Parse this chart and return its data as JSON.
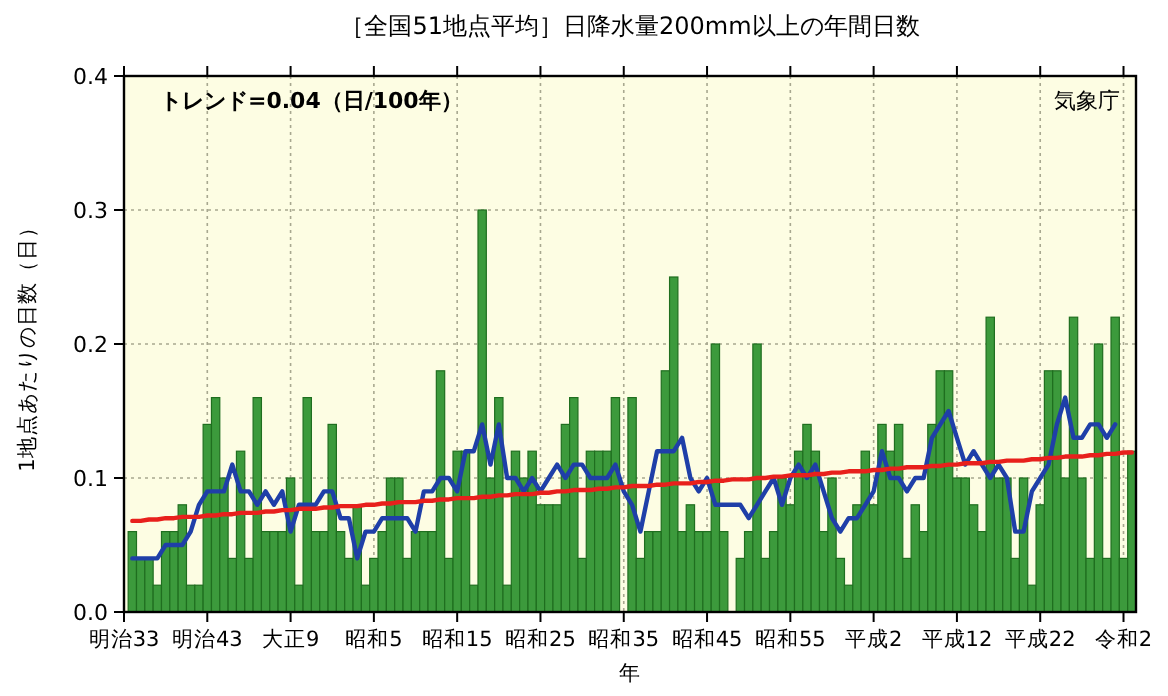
{
  "chart_data": {
    "type": "bar",
    "title": "［全国51地点平均］日降水量200mm以上の年間日数",
    "xlabel": "年",
    "ylabel": "1地点あたりの日数（日）",
    "annotations": [
      "トレンド=0.04（日/100年）",
      "気象庁"
    ],
    "ylim": [
      0,
      0.4
    ],
    "categories": [
      "明治33",
      null,
      null,
      null,
      null,
      null,
      null,
      null,
      null,
      null,
      "明治43",
      null,
      null,
      null,
      null,
      null,
      null,
      null,
      null,
      null,
      "大正9",
      null,
      null,
      null,
      null,
      null,
      null,
      null,
      null,
      null,
      "昭和5",
      null,
      null,
      null,
      null,
      null,
      null,
      null,
      null,
      null,
      "昭和15",
      null,
      null,
      null,
      null,
      null,
      null,
      null,
      null,
      null,
      "昭和25",
      null,
      null,
      null,
      null,
      null,
      null,
      null,
      null,
      null,
      "昭和35",
      null,
      null,
      null,
      null,
      null,
      null,
      null,
      null,
      null,
      "昭和45",
      null,
      null,
      null,
      null,
      null,
      null,
      null,
      null,
      null,
      "昭和55",
      null,
      null,
      null,
      null,
      null,
      null,
      null,
      null,
      null,
      "平成2",
      null,
      null,
      null,
      null,
      null,
      null,
      null,
      null,
      null,
      "平成12",
      null,
      null,
      null,
      null,
      null,
      null,
      null,
      null,
      null,
      "平成22",
      null,
      null,
      null,
      null,
      null,
      null,
      null,
      null,
      null,
      "令和2",
      null
    ],
    "yticks": [
      {
        "value": 0,
        "label": "0.0"
      },
      {
        "value": 0.1,
        "label": "0.1"
      },
      {
        "value": 0.2,
        "label": "0.2"
      },
      {
        "value": 0.3,
        "label": "0.3"
      },
      {
        "value": 0.4,
        "label": "0.4"
      }
    ],
    "grid": true,
    "series": [
      {
        "color": "#3c9a3c",
        "values": [
          null,
          0.06,
          0.04,
          0.04,
          0.02,
          0.06,
          0.06,
          0.08,
          0.02,
          0.02,
          0.14,
          0.16,
          0.1,
          0.04,
          0.12,
          0.04,
          0.16,
          0.06,
          0.06,
          0.06,
          0.1,
          0.02,
          0.16,
          0.06,
          0.06,
          0.14,
          0.06,
          0.04,
          0.08,
          0.02,
          0.04,
          0.06,
          0.1,
          0.1,
          0.04,
          0.06,
          0.06,
          0.06,
          0.18,
          0.04,
          0.12,
          0.12,
          0.02,
          0.3,
          0.1,
          0.16,
          0.02,
          0.12,
          0.1,
          0.12,
          0.08,
          0.08,
          0.08,
          0.14,
          0.16,
          0.04,
          0.12,
          0.12,
          0.12,
          0.16,
          0,
          0.16,
          0.04,
          0.06,
          0.06,
          0.18,
          0.25,
          0.06,
          0.08,
          0.06,
          0.06,
          0.2,
          0.06,
          0,
          0.04,
          0.06,
          0.2,
          0.04,
          0.06,
          0.1,
          0.08,
          0.12,
          0.14,
          0.12,
          0.06,
          0.1,
          0.04,
          0.02,
          0.08,
          0.12,
          0.08,
          0.14,
          0.12,
          0.14,
          0.04,
          0.08,
          0.06,
          0.14,
          0.18,
          0.18,
          0.1,
          0.1,
          0.08,
          0.06,
          0.22,
          0.1,
          0.1,
          0.04,
          0.1,
          0.02,
          0.08,
          0.18,
          0.18,
          0.1,
          0.22,
          0.1,
          0.04,
          0.2,
          0.04,
          0.22,
          0.04,
          0.12
        ]
      },
      {
        "type": "line",
        "color": "#1f3fa8",
        "values": [
          null,
          0.04,
          0.04,
          0.04,
          0.04,
          0.05,
          0.05,
          0.05,
          0.06,
          0.08,
          0.09,
          0.09,
          0.09,
          0.11,
          0.09,
          0.09,
          0.08,
          0.09,
          0.08,
          0.09,
          0.06,
          0.08,
          0.08,
          0.08,
          0.09,
          0.09,
          0.07,
          0.07,
          0.04,
          0.06,
          0.06,
          0.07,
          0.07,
          0.07,
          0.07,
          0.06,
          0.09,
          0.09,
          0.1,
          0.1,
          0.09,
          0.12,
          0.12,
          0.14,
          0.11,
          0.14,
          0.1,
          0.1,
          0.09,
          0.1,
          0.09,
          0.1,
          0.11,
          0.1,
          0.11,
          0.11,
          0.1,
          0.1,
          0.1,
          0.11,
          0.09,
          0.08,
          0.06,
          0.09,
          0.12,
          0.12,
          0.12,
          0.13,
          0.1,
          0.09,
          0.1,
          0.08,
          0.08,
          0.08,
          0.08,
          0.07,
          0.08,
          0.09,
          0.1,
          0.08,
          0.1,
          0.11,
          0.1,
          0.11,
          0.09,
          0.07,
          0.06,
          0.07,
          0.07,
          0.08,
          0.09,
          0.12,
          0.1,
          0.1,
          0.09,
          0.1,
          0.1,
          0.13,
          0.14,
          0.15,
          0.13,
          0.11,
          0.12,
          0.11,
          0.1,
          0.11,
          0.1,
          0.06,
          0.06,
          0.09,
          0.1,
          0.11,
          0.14,
          0.16,
          0.13,
          0.13,
          0.14,
          0.14,
          0.13,
          0.14,
          null,
          null
        ]
      },
      {
        "type": "line",
        "color": "#e8201c",
        "values": [
          null,
          0.068,
          0.068,
          0.069,
          0.069,
          0.07,
          0.07,
          0.071,
          0.071,
          0.071,
          0.072,
          0.072,
          0.073,
          0.073,
          0.074,
          0.074,
          0.074,
          0.075,
          0.075,
          0.076,
          0.076,
          0.077,
          0.077,
          0.077,
          0.078,
          0.078,
          0.079,
          0.079,
          0.079,
          0.08,
          0.08,
          0.081,
          0.081,
          0.082,
          0.082,
          0.082,
          0.083,
          0.083,
          0.084,
          0.084,
          0.085,
          0.085,
          0.085,
          0.086,
          0.086,
          0.087,
          0.087,
          0.088,
          0.088,
          0.088,
          0.089,
          0.089,
          0.09,
          0.09,
          0.091,
          0.091,
          0.091,
          0.092,
          0.092,
          0.093,
          0.093,
          0.094,
          0.094,
          0.094,
          0.095,
          0.095,
          0.096,
          0.096,
          0.096,
          0.097,
          0.097,
          0.098,
          0.098,
          0.099,
          0.099,
          0.099,
          0.1,
          0.1,
          0.101,
          0.101,
          0.102,
          0.102,
          0.102,
          0.103,
          0.103,
          0.104,
          0.104,
          0.105,
          0.105,
          0.105,
          0.106,
          0.106,
          0.107,
          0.107,
          0.108,
          0.108,
          0.108,
          0.109,
          0.109,
          0.11,
          0.11,
          0.111,
          0.111,
          0.111,
          0.112,
          0.112,
          0.113,
          0.113,
          0.113,
          0.114,
          0.114,
          0.115,
          0.115,
          0.116,
          0.116,
          0.116,
          0.117,
          0.117,
          0.118,
          0.118,
          0.119,
          0.119
        ]
      }
    ]
  }
}
